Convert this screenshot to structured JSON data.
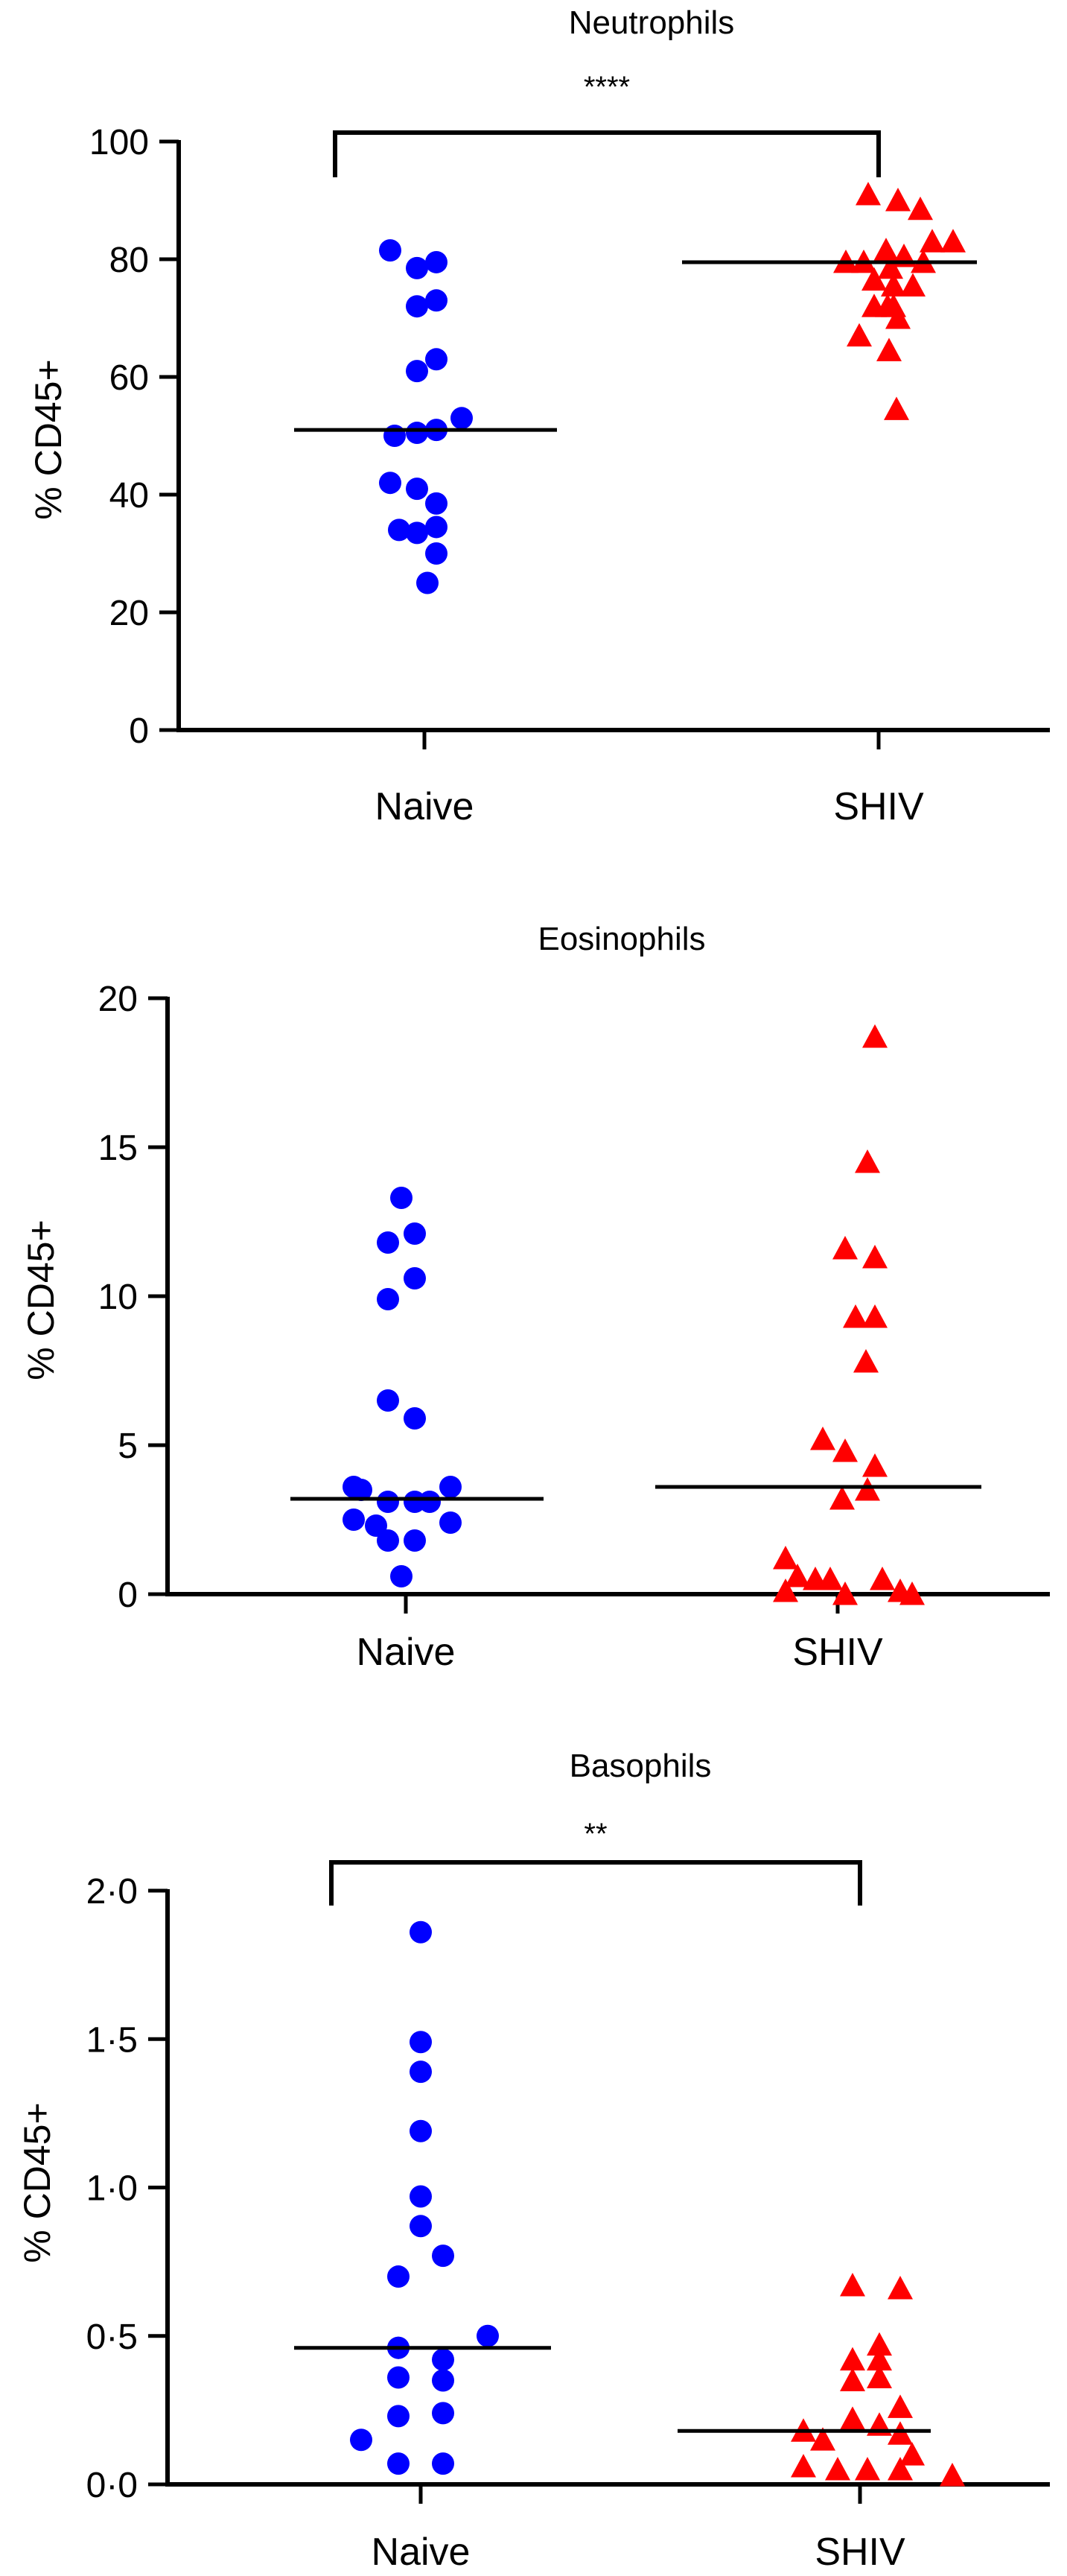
{
  "chart_data": [
    {
      "type": "scatter",
      "title": "Neutrophils",
      "ylabel": "% CD45+",
      "categories": [
        "Naive",
        "SHIV"
      ],
      "ylim": [
        0,
        100
      ],
      "yticks": [
        "0",
        "20",
        "40",
        "60",
        "80",
        "100"
      ],
      "yticks_values": [
        0,
        20,
        40,
        60,
        80,
        100
      ],
      "significance": "****",
      "series": [
        {
          "color": "#0000ff",
          "marker": "circle",
          "x": [
            -0.23,
            -0.05,
            0.08,
            -0.05,
            0.08,
            -0.05,
            0.08,
            -0.2,
            -0.05,
            0.08,
            0.25,
            -0.23,
            -0.05,
            0.08,
            -0.05,
            0.08,
            -0.17,
            0.08,
            0.02
          ],
          "values": [
            81.5,
            78.5,
            79.5,
            72,
            73,
            61,
            63,
            50,
            50.5,
            51,
            53,
            42,
            41,
            38.5,
            33.5,
            34.5,
            34,
            30,
            25
          ],
          "median": 51
        },
        {
          "color": "#ff0000",
          "marker": "triangle",
          "x": [
            -0.07,
            0.13,
            0.28,
            0.36,
            0.5,
            -0.22,
            -0.1,
            0.05,
            0.17,
            0.3,
            0.08,
            -0.03,
            0.1,
            0.23,
            0.06,
            -0.03,
            0.1,
            0.13,
            -0.13
          ],
          "values": [
            91,
            90,
            88.5,
            83,
            83,
            79.5,
            79.5,
            81.5,
            80.5,
            79.5,
            78.5,
            76.5,
            75.5,
            75.5,
            72,
            72,
            72,
            70,
            67
          ],
          "extra_x": [
            0.07,
            0.12
          ],
          "extra_values": [
            64.5,
            54.5
          ],
          "median": 79.5
        }
      ]
    },
    {
      "type": "scatter",
      "title": "Eosinophils",
      "ylabel": "% CD45+",
      "categories": [
        "Naive",
        "SHIV"
      ],
      "ylim": [
        0,
        20
      ],
      "yticks": [
        "0",
        "5",
        "10",
        "15",
        "20"
      ],
      "yticks_values": [
        0,
        5,
        10,
        15,
        20
      ],
      "significance": "",
      "series": [
        {
          "color": "#0000ff",
          "marker": "circle",
          "x": [
            -0.03,
            -0.12,
            0.06,
            0.06,
            -0.12,
            -0.12,
            0.06,
            -0.35,
            -0.3,
            0.3,
            -0.35,
            -0.2,
            -0.12,
            0.06,
            0.16,
            0.3,
            -0.12,
            0.06,
            -0.03
          ],
          "values": [
            13.3,
            11.8,
            12.1,
            10.6,
            9.9,
            6.5,
            5.9,
            3.6,
            3.5,
            3.6,
            2.5,
            2.3,
            3.1,
            3.1,
            3.1,
            2.4,
            1.8,
            1.8,
            0.6
          ],
          "median": 3.2
        },
        {
          "color": "#ff0000",
          "marker": "triangle",
          "x": [
            0.25,
            0.2,
            0.05,
            0.25,
            0.12,
            0.25,
            0.19,
            -0.1,
            0.05,
            0.25,
            0.03,
            0.2,
            -0.35,
            -0.27,
            -0.15,
            -0.35,
            -0.05,
            0.05,
            0.3,
            0.5,
            0.42
          ],
          "values": [
            18.7,
            14.5,
            11.6,
            11.3,
            9.3,
            9.3,
            7.8,
            5.2,
            4.8,
            4.3,
            3.2,
            3.5,
            1.2,
            0.6,
            0.5,
            0.1,
            0.5,
            0.0,
            0.5,
            0.0,
            0.1
          ],
          "median": 3.6
        }
      ]
    },
    {
      "type": "scatter",
      "title": "Basophils",
      "ylabel": "% CD45+",
      "categories": [
        "Naive",
        "SHIV"
      ],
      "ylim": [
        0,
        2
      ],
      "yticks": [
        "0·0",
        "0·5",
        "1·0",
        "1·5",
        "2·0"
      ],
      "yticks_values": [
        0,
        0.5,
        1,
        1.5,
        2
      ],
      "significance": "**",
      "series": [
        {
          "color": "#0000ff",
          "marker": "circle",
          "x": [
            0.0,
            0.0,
            0.0,
            0.0,
            0.0,
            0.0,
            0.15,
            -0.15,
            -0.15,
            0.45,
            -0.15,
            0.15,
            -0.15,
            0.15,
            -0.15,
            0.15,
            -0.4,
            -0.15,
            0.15
          ],
          "values": [
            1.86,
            1.49,
            1.39,
            1.19,
            0.97,
            0.87,
            0.77,
            0.7,
            0.46,
            0.5,
            0.46,
            0.42,
            0.36,
            0.35,
            0.23,
            0.24,
            0.15,
            0.07,
            0.07
          ],
          "median": 0.46
        },
        {
          "color": "#ff0000",
          "marker": "triangle",
          "x": [
            -0.05,
            0.27,
            0.13,
            -0.05,
            0.13,
            -0.05,
            0.13,
            0.27,
            -0.38,
            -0.25,
            0.27,
            -0.05,
            0.13,
            -0.38,
            0.35,
            -0.15,
            0.05,
            0.27,
            0.62
          ],
          "values": [
            0.67,
            0.66,
            0.47,
            0.42,
            0.42,
            0.35,
            0.36,
            0.26,
            0.18,
            0.15,
            0.17,
            0.22,
            0.2,
            0.06,
            0.1,
            0.05,
            0.05,
            0.05,
            0.03
          ],
          "median": 0.18
        }
      ]
    }
  ]
}
